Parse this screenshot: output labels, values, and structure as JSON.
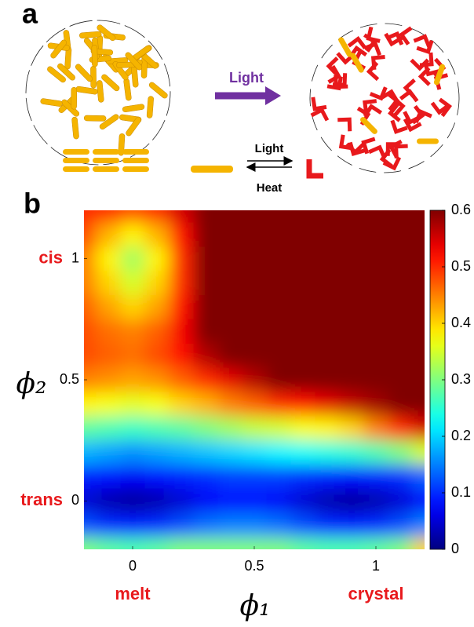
{
  "panel_a": {
    "label": "a",
    "arrow_label": "Light",
    "forward_label": "Light",
    "reverse_label": "Heat"
  },
  "chart_data": {
    "type": "heatmap",
    "panel_label": "b",
    "xlabel": "ϕ₁",
    "ylabel": "ϕ₂",
    "x": [
      -0.2,
      -0.1,
      0,
      0.1,
      0.2,
      0.3,
      0.4,
      0.5,
      0.6,
      0.7,
      0.8,
      0.9,
      1.0,
      1.1,
      1.2
    ],
    "y": [
      1.2,
      1.1,
      1.0,
      0.9,
      0.8,
      0.7,
      0.6,
      0.5,
      0.4,
      0.3,
      0.2,
      0.1,
      0,
      -0.1,
      -0.2
    ],
    "z": [
      [
        0.5,
        0.5,
        0.48,
        0.5,
        0.55,
        0.6,
        0.6,
        0.6,
        0.6,
        0.6,
        0.6,
        0.6,
        0.6,
        0.6,
        0.6
      ],
      [
        0.48,
        0.42,
        0.38,
        0.42,
        0.52,
        0.6,
        0.6,
        0.6,
        0.6,
        0.6,
        0.6,
        0.6,
        0.6,
        0.6,
        0.6
      ],
      [
        0.45,
        0.38,
        0.32,
        0.38,
        0.5,
        0.6,
        0.6,
        0.6,
        0.6,
        0.6,
        0.6,
        0.6,
        0.6,
        0.6,
        0.6
      ],
      [
        0.45,
        0.4,
        0.35,
        0.4,
        0.5,
        0.6,
        0.6,
        0.6,
        0.6,
        0.6,
        0.6,
        0.6,
        0.6,
        0.6,
        0.6
      ],
      [
        0.47,
        0.43,
        0.4,
        0.43,
        0.52,
        0.6,
        0.6,
        0.6,
        0.6,
        0.6,
        0.6,
        0.6,
        0.6,
        0.6,
        0.6
      ],
      [
        0.48,
        0.46,
        0.45,
        0.47,
        0.53,
        0.6,
        0.6,
        0.6,
        0.6,
        0.6,
        0.6,
        0.6,
        0.6,
        0.6,
        0.6
      ],
      [
        0.48,
        0.47,
        0.46,
        0.48,
        0.52,
        0.57,
        0.6,
        0.6,
        0.6,
        0.6,
        0.6,
        0.6,
        0.6,
        0.6,
        0.6
      ],
      [
        0.45,
        0.44,
        0.43,
        0.44,
        0.47,
        0.5,
        0.54,
        0.57,
        0.6,
        0.6,
        0.6,
        0.6,
        0.6,
        0.6,
        0.6
      ],
      [
        0.38,
        0.37,
        0.36,
        0.37,
        0.4,
        0.42,
        0.45,
        0.47,
        0.5,
        0.52,
        0.54,
        0.56,
        0.58,
        0.6,
        0.6
      ],
      [
        0.28,
        0.27,
        0.26,
        0.27,
        0.28,
        0.3,
        0.32,
        0.34,
        0.35,
        0.37,
        0.38,
        0.4,
        0.45,
        0.5,
        0.55
      ],
      [
        0.18,
        0.17,
        0.16,
        0.17,
        0.18,
        0.19,
        0.2,
        0.21,
        0.22,
        0.23,
        0.24,
        0.25,
        0.27,
        0.3,
        0.35
      ],
      [
        0.09,
        0.08,
        0.07,
        0.08,
        0.09,
        0.1,
        0.11,
        0.11,
        0.11,
        0.1,
        0.09,
        0.08,
        0.09,
        0.1,
        0.13
      ],
      [
        0.05,
        0.03,
        0.02,
        0.03,
        0.05,
        0.07,
        0.08,
        0.08,
        0.07,
        0.05,
        0.03,
        0.02,
        0.03,
        0.05,
        0.08
      ],
      [
        0.12,
        0.1,
        0.09,
        0.1,
        0.12,
        0.14,
        0.15,
        0.15,
        0.14,
        0.12,
        0.1,
        0.09,
        0.1,
        0.12,
        0.15
      ],
      [
        0.3,
        0.28,
        0.27,
        0.28,
        0.3,
        0.3,
        0.3,
        0.3,
        0.3,
        0.28,
        0.27,
        0.27,
        0.28,
        0.3,
        0.4
      ]
    ],
    "xlim": [
      -0.2,
      1.2
    ],
    "ylim": [
      -0.2,
      1.2
    ],
    "xticks": [
      0,
      0.5,
      1
    ],
    "yticks": [
      0,
      0.5,
      1
    ],
    "clim": [
      0,
      0.6
    ],
    "cticks": [
      0,
      0.1,
      0.2,
      0.3,
      0.4,
      0.5,
      0.6
    ],
    "colormap": "jet",
    "annotations": [
      {
        "text": "cis",
        "y": 1
      },
      {
        "text": "trans",
        "y": 0
      },
      {
        "text": "melt",
        "x": 0
      },
      {
        "text": "crystal",
        "x": 1
      }
    ],
    "annotation_color": "#e8191c"
  }
}
